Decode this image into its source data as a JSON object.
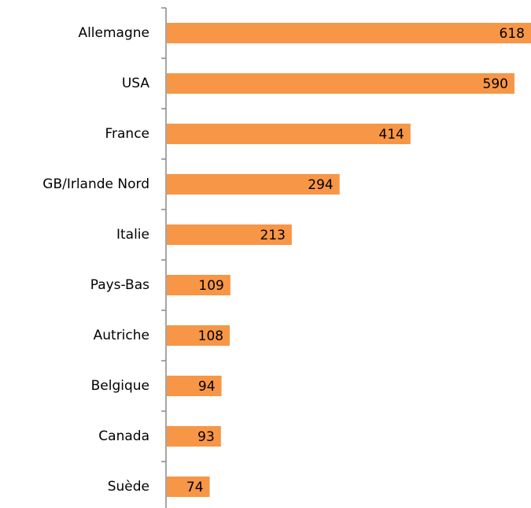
{
  "chart_data": {
    "type": "hbar",
    "categories": [
      "Allemagne",
      "USA",
      "France",
      "GB/Irlande Nord",
      "Italie",
      "Pays-Bas",
      "Autriche",
      "Belgique",
      "Canada",
      "Suède"
    ],
    "values": [
      618,
      590,
      414,
      294,
      213,
      109,
      108,
      94,
      93,
      74
    ],
    "color": "#f79646"
  }
}
